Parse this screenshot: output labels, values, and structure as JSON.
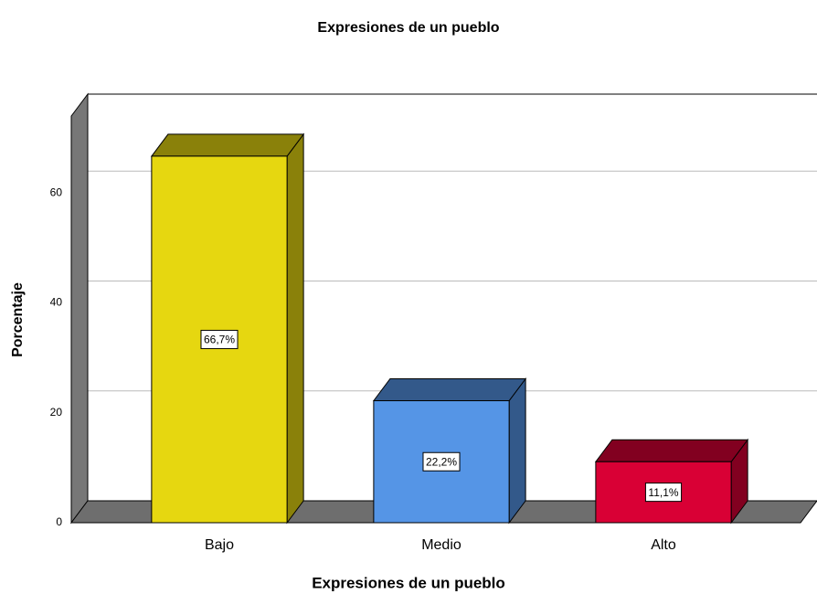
{
  "chart_data": {
    "type": "bar3d",
    "title": "Expresiones de un pueblo",
    "x_label": "Expresiones de un pueblo",
    "y_label": "Porcentaje",
    "categories": [
      "Bajo",
      "Medio",
      "Alto"
    ],
    "values": [
      66.7,
      22.2,
      11.1
    ],
    "value_labels": [
      "66,7%",
      "22,2%",
      "11,1%"
    ],
    "colors": [
      "#e6d710",
      "#5595e6",
      "#d90035"
    ],
    "ylim": [
      0,
      74
    ],
    "yticks": [
      0,
      20,
      40,
      60
    ],
    "grid": true
  }
}
